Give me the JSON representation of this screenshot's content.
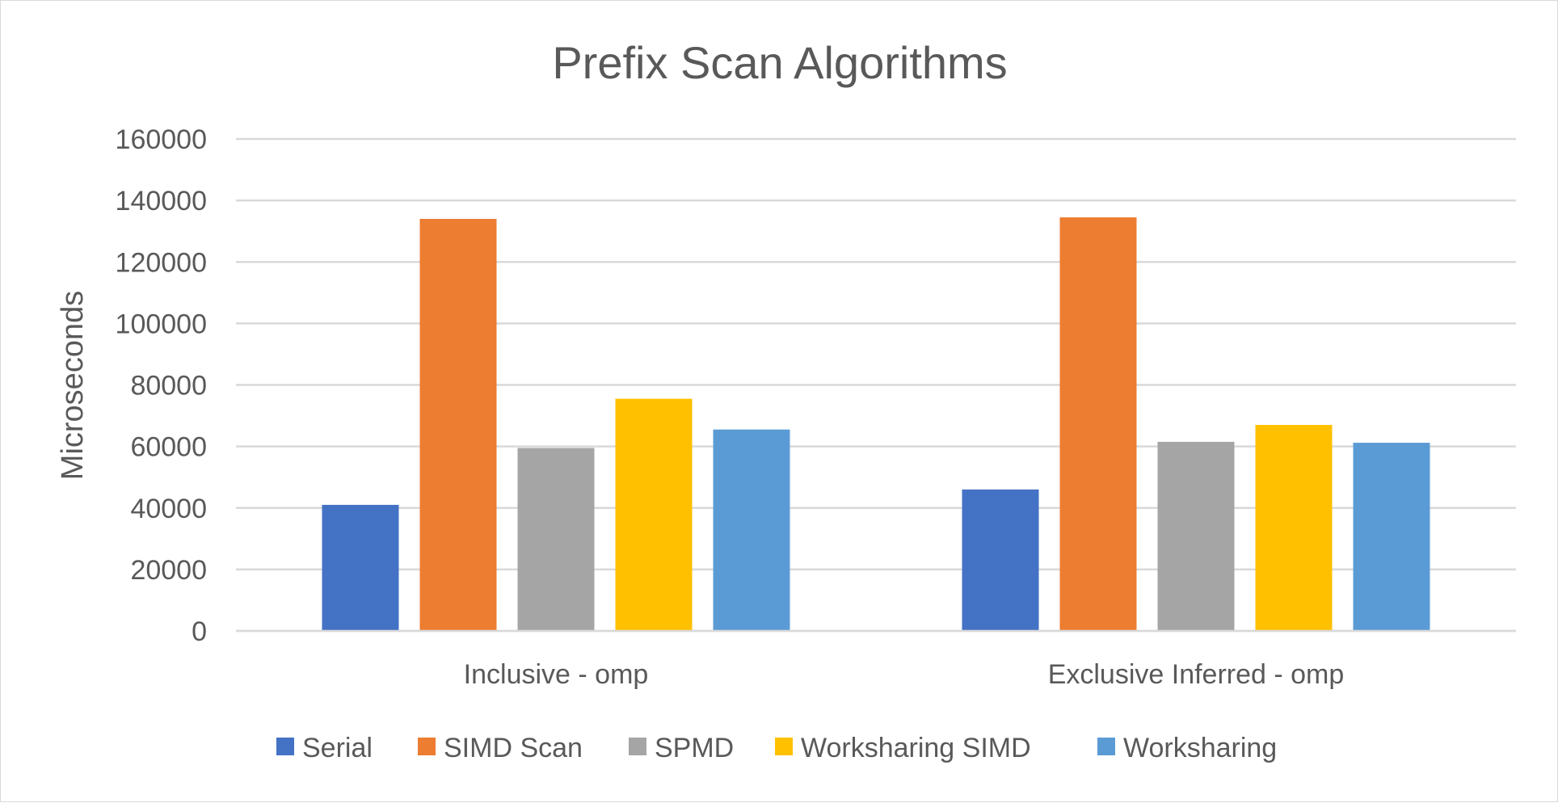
{
  "chart_data": {
    "type": "bar",
    "title": "Prefix Scan Algorithms",
    "xlabel": "",
    "ylabel": "Microseconds",
    "categories": [
      "Inclusive - omp",
      "Exclusive Inferred - omp"
    ],
    "series": [
      {
        "name": "Serial",
        "values": [
          41000,
          46000
        ],
        "color": "#4472C4"
      },
      {
        "name": "SIMD Scan",
        "values": [
          134000,
          134500
        ],
        "color": "#ED7D31"
      },
      {
        "name": "SPMD",
        "values": [
          59500,
          61500
        ],
        "color": "#A5A5A5"
      },
      {
        "name": "Worksharing SIMD",
        "values": [
          75500,
          67000
        ],
        "color": "#FFC000"
      },
      {
        "name": "Worksharing",
        "values": [
          65500,
          61200
        ],
        "color": "#5B9BD5"
      }
    ],
    "ylim": [
      0,
      160000
    ],
    "yticks": [
      0,
      20000,
      40000,
      60000,
      80000,
      100000,
      120000,
      140000,
      160000
    ],
    "ytick_labels": [
      "0",
      "20000",
      "40000",
      "60000",
      "80000",
      "100000",
      "120000",
      "140000",
      "160000"
    ],
    "grid": true,
    "legend_position": "bottom"
  }
}
